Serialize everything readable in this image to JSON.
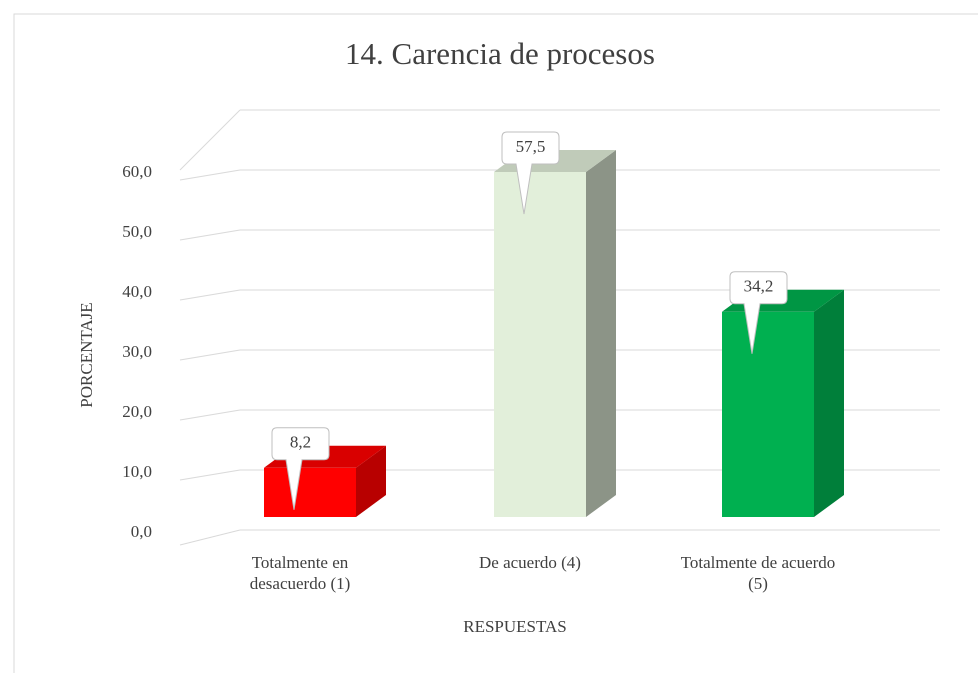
{
  "chart_data": {
    "type": "bar3d",
    "title": "14. Carencia de procesos",
    "y_label": "PORCENTAJE",
    "x_label": "RESPUESTAS",
    "categories": [
      "Totalmente en desacuerdo (1)",
      "De acuerdo (4)",
      "Totalmente de acuerdo (5)"
    ],
    "values": [
      8.2,
      57.5,
      34.2
    ],
    "value_labels": [
      "8,2",
      "57,5",
      "34,2"
    ],
    "colors": [
      "#ff0000",
      "#e2efda",
      "#00b050"
    ],
    "ylim": [
      0,
      70
    ],
    "yticks": [
      {
        "value": 0,
        "label": "0,0"
      },
      {
        "value": 10,
        "label": "10,0"
      },
      {
        "value": 20,
        "label": "20,0"
      },
      {
        "value": 30,
        "label": "30,0"
      },
      {
        "value": 40,
        "label": "40,0"
      },
      {
        "value": 50,
        "label": "50,0"
      },
      {
        "value": 60,
        "label": "60,0"
      }
    ],
    "grid": true
  }
}
